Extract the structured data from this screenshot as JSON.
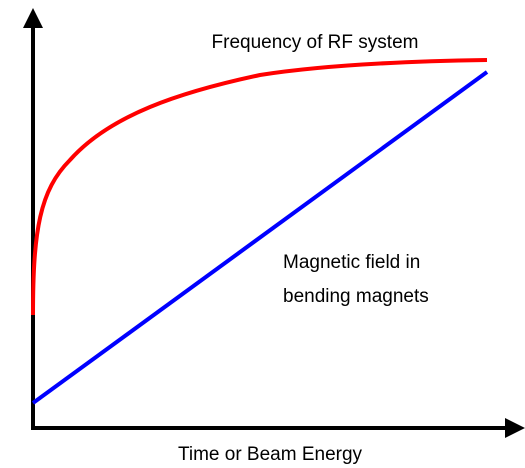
{
  "labels": {
    "rf_frequency": "Frequency of RF system",
    "magnetic_field": [
      "Magnetic field in",
      "bending magnets"
    ],
    "x_axis": "Time or Beam Energy"
  }
}
